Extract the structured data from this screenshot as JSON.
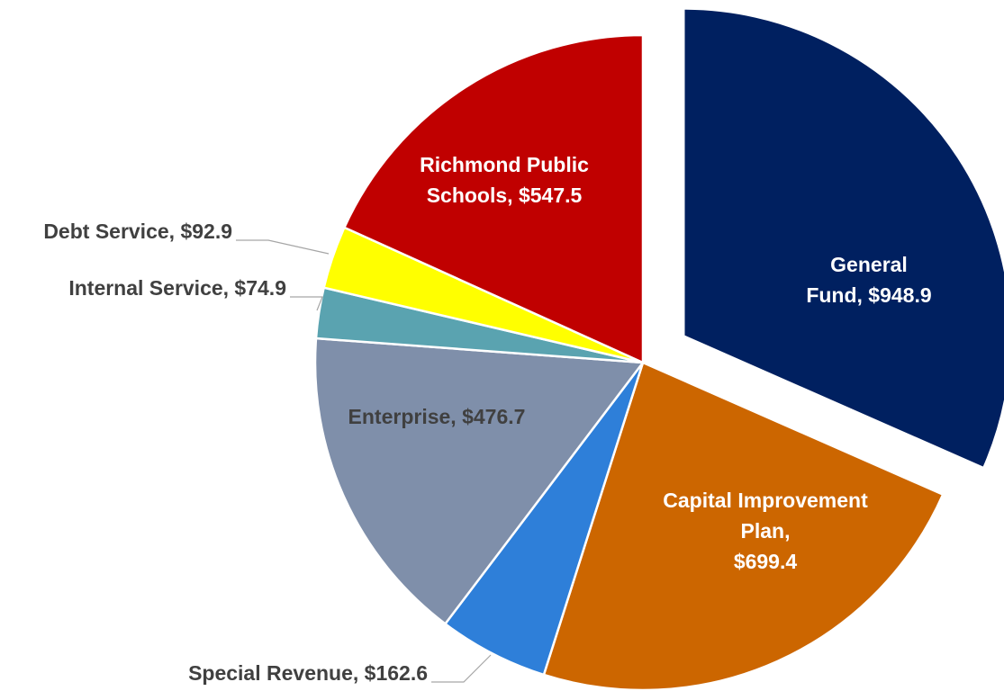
{
  "chart_data": {
    "type": "pie",
    "values": [
      948.9,
      699.4,
      162.6,
      476.7,
      74.9,
      92.9,
      547.5
    ],
    "value_labels": [
      "General Fund, $948.9",
      "Capital Improvement Plan,\n$699.4",
      "Special Revenue, $162.6",
      "Enterprise, $476.7",
      "Internal Service, $74.9",
      "Debt Service, $92.9",
      "Richmond Public\nSchools, $547.5"
    ],
    "colors": [
      "#002060",
      "#cc6600",
      "#2e7fd9",
      "#7f8faa",
      "#5aa3b0",
      "#ffff00",
      "#c00000"
    ],
    "label_colors": [
      "#ffffff",
      "#ffffff",
      "#404040",
      "#404040",
      "#404040",
      "#404040",
      "#ffffff"
    ],
    "exploded": [
      true,
      false,
      false,
      false,
      false,
      false,
      false
    ]
  }
}
